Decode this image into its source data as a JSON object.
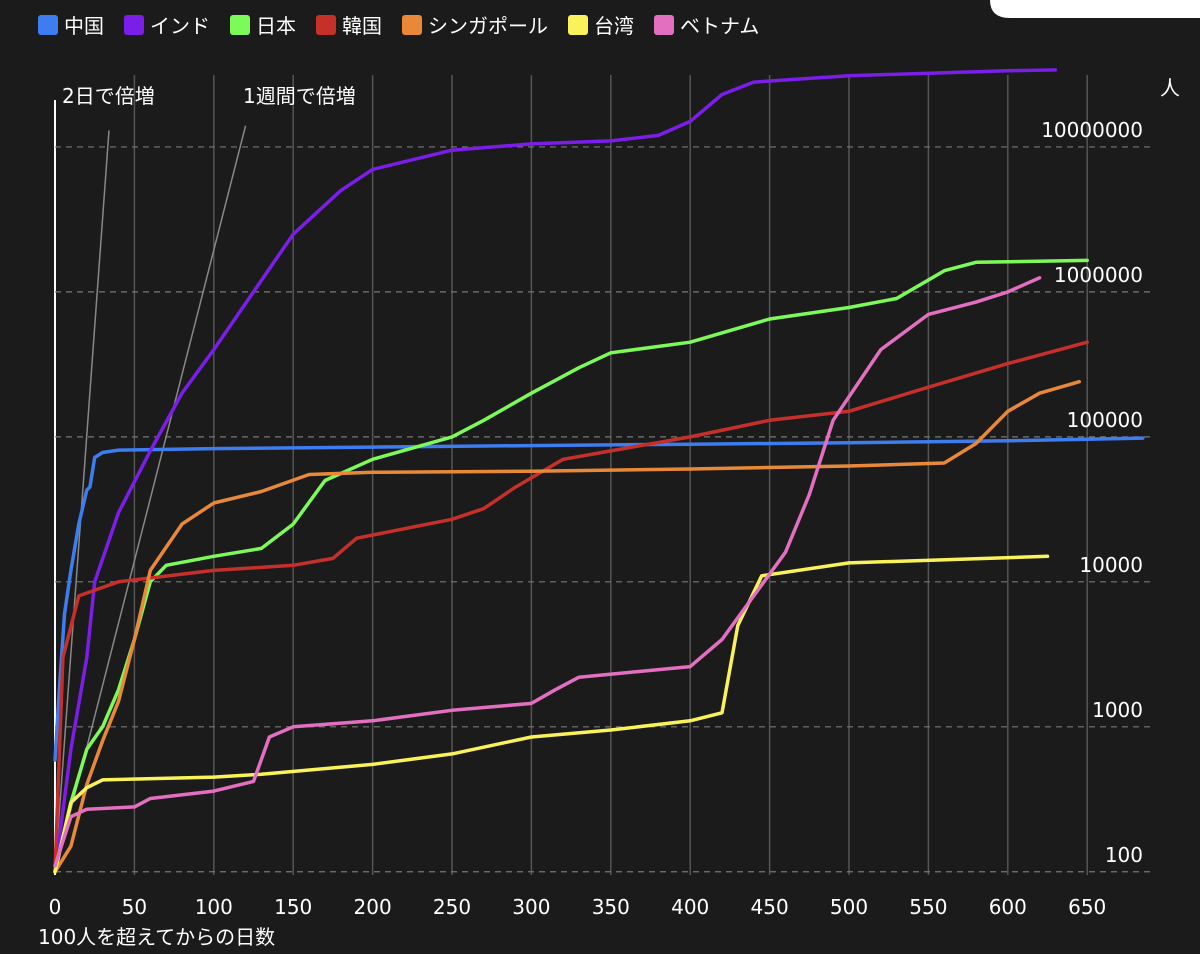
{
  "chart_data": {
    "type": "line",
    "ylabel": "人",
    "xlabel": "100人を超えてからの日数",
    "log_scale": true,
    "grid": true,
    "xlim": [
      0,
      690
    ],
    "ylim": [
      95,
      50000000
    ],
    "xticks": [
      0,
      50,
      100,
      150,
      200,
      250,
      300,
      350,
      400,
      450,
      500,
      550,
      600,
      650
    ],
    "yticks": [
      100,
      1000,
      10000,
      100000,
      1000000,
      10000000
    ],
    "reference_lines": [
      {
        "label": "2日で倍増",
        "x": [
          0,
          34
        ],
        "values": [
          100,
          13000000
        ]
      },
      {
        "label": "1週間で倍増",
        "x": [
          0,
          120
        ],
        "values": [
          100,
          14000000
        ]
      }
    ],
    "series": [
      {
        "name": "中国",
        "color": "#3d7df0",
        "x": [
          0,
          3,
          6,
          10,
          15,
          20,
          22,
          25,
          30,
          40,
          100,
          200,
          300,
          400,
          500,
          600,
          685
        ],
        "values": [
          590,
          2000,
          6000,
          12000,
          25000,
          43000,
          45000,
          72000,
          78000,
          81000,
          83000,
          85000,
          87000,
          89000,
          91000,
          94000,
          98000
        ]
      },
      {
        "name": "インド",
        "color": "#7a1ee8",
        "x": [
          0,
          10,
          20,
          25,
          40,
          60,
          80,
          100,
          130,
          150,
          180,
          200,
          250,
          300,
          350,
          380,
          400,
          420,
          440,
          500,
          600,
          630
        ],
        "values": [
          100,
          700,
          3000,
          10000,
          30000,
          80000,
          200000,
          400000,
          1200000,
          2500000,
          5000000,
          7000000,
          9500000,
          10500000,
          11000000,
          12000000,
          15000000,
          23000000,
          28000000,
          31000000,
          33500000,
          34000000
        ]
      },
      {
        "name": "日本",
        "color": "#7dfa5a",
        "x": [
          0,
          10,
          20,
          30,
          40,
          50,
          60,
          70,
          100,
          130,
          150,
          170,
          200,
          250,
          270,
          300,
          330,
          350,
          400,
          450,
          500,
          530,
          560,
          580,
          650
        ],
        "values": [
          100,
          300,
          700,
          1000,
          1800,
          4000,
          10000,
          13000,
          15000,
          17000,
          25000,
          50000,
          70000,
          100000,
          130000,
          200000,
          300000,
          380000,
          450000,
          650000,
          780000,
          900000,
          1400000,
          1600000,
          1650000
        ]
      },
      {
        "name": "韓国",
        "color": "#c6302b",
        "x": [
          0,
          5,
          15,
          40,
          100,
          150,
          175,
          190,
          250,
          270,
          290,
          320,
          350,
          400,
          450,
          500,
          550,
          600,
          650
        ],
        "values": [
          100,
          3000,
          8000,
          10000,
          12000,
          13000,
          14500,
          20000,
          27000,
          32000,
          45000,
          70000,
          80000,
          100000,
          130000,
          150000,
          220000,
          320000,
          450000
        ]
      },
      {
        "name": "シンガポール",
        "color": "#e8893a",
        "x": [
          0,
          10,
          20,
          30,
          40,
          50,
          60,
          80,
          100,
          130,
          160,
          200,
          300,
          400,
          500,
          560,
          580,
          600,
          620,
          645
        ],
        "values": [
          100,
          150,
          400,
          800,
          1500,
          4000,
          12000,
          25000,
          35000,
          42000,
          55000,
          57000,
          58000,
          60000,
          63000,
          66000,
          90000,
          150000,
          200000,
          240000
        ]
      },
      {
        "name": "台湾",
        "color": "#faf25a",
        "x": [
          0,
          10,
          20,
          30,
          100,
          130,
          200,
          250,
          300,
          350,
          400,
          420,
          430,
          445,
          500,
          625
        ],
        "values": [
          100,
          300,
          380,
          430,
          450,
          470,
          550,
          650,
          850,
          950,
          1100,
          1250,
          5000,
          11000,
          13500,
          15000
        ]
      },
      {
        "name": "ベトナム",
        "color": "#e36fc0",
        "x": [
          0,
          10,
          20,
          50,
          60,
          100,
          125,
          135,
          150,
          200,
          250,
          300,
          315,
          330,
          400,
          420,
          440,
          460,
          475,
          490,
          520,
          550,
          580,
          600,
          620
        ],
        "values": [
          110,
          240,
          270,
          280,
          320,
          360,
          420,
          850,
          1000,
          1100,
          1300,
          1450,
          1800,
          2200,
          2600,
          4000,
          8000,
          16000,
          40000,
          130000,
          400000,
          700000,
          850000,
          1000000,
          1250000
        ]
      }
    ]
  }
}
